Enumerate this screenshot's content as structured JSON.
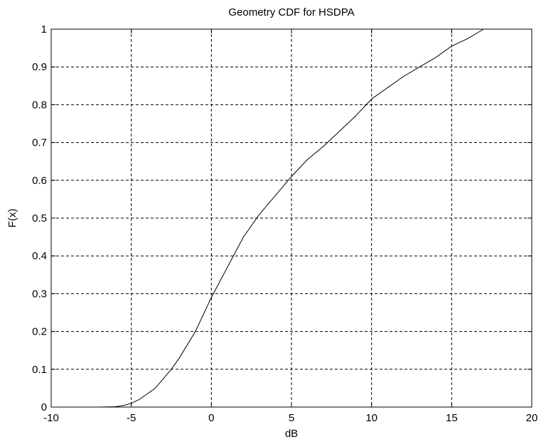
{
  "chart_data": {
    "type": "line",
    "title": "Geometry CDF for HSDPA",
    "x_label": "dB",
    "y_label": "F(x)",
    "x": [
      -8,
      -7,
      -6,
      -5.5,
      -5,
      -4.5,
      -4,
      -3.5,
      -3,
      -2.5,
      -2,
      -1,
      0,
      1,
      1.5,
      2,
      3,
      4,
      5,
      6,
      7,
      8,
      8.5,
      9,
      10,
      11,
      12,
      13,
      14,
      15,
      16,
      17
    ],
    "series": [
      {
        "name": "F(x)",
        "color": "#000000",
        "values": [
          0,
          0,
          0.001,
          0.004,
          0.01,
          0.02,
          0.035,
          0.05,
          0.075,
          0.1,
          0.13,
          0.2,
          0.29,
          0.37,
          0.41,
          0.45,
          0.51,
          0.56,
          0.61,
          0.655,
          0.69,
          0.73,
          0.75,
          0.77,
          0.815,
          0.845,
          0.875,
          0.9,
          0.925,
          0.955,
          0.975,
          1
        ]
      }
    ],
    "xlim": [
      -10,
      20
    ],
    "xticks": [
      -10,
      -5,
      0,
      5,
      10,
      15,
      20
    ],
    "ylim": [
      0,
      1
    ],
    "yticks": [
      0,
      0.1,
      0.2,
      0.3,
      0.4,
      0.5,
      0.6,
      0.7,
      0.8,
      0.9,
      1
    ],
    "grid": true
  }
}
